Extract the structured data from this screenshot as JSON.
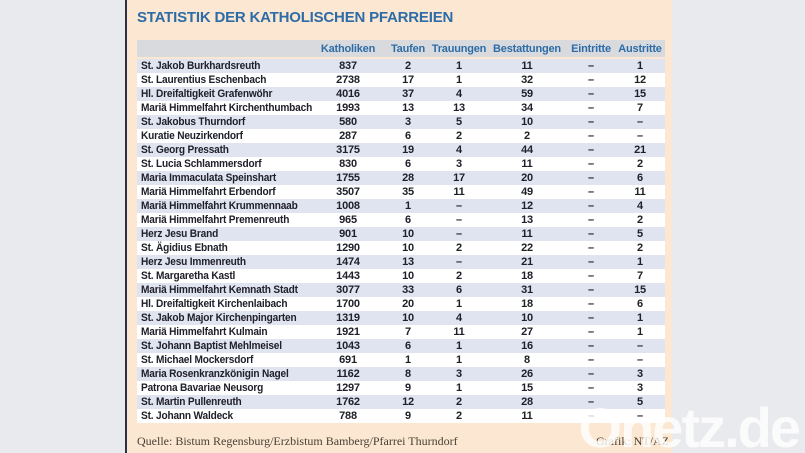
{
  "title": "STATISTIK DER KATHOLISCHEN PFARREIEN",
  "chart_data": {
    "type": "table",
    "title": "STATISTIK DER KATHOLISCHEN PFARREIEN",
    "columns": [
      "Katholiken",
      "Taufen",
      "Trauungen",
      "Bestattungen",
      "Eintritte",
      "Austritte"
    ],
    "rows": [
      {
        "name": "St. Jakob Burkhardsreuth",
        "values": [
          "837",
          "2",
          "1",
          "11",
          "–",
          "1"
        ]
      },
      {
        "name": "St. Laurentius Eschenbach",
        "values": [
          "2738",
          "17",
          "1",
          "32",
          "–",
          "12"
        ]
      },
      {
        "name": "Hl. Dreifaltigkeit Grafenwöhr",
        "values": [
          "4016",
          "37",
          "4",
          "59",
          "–",
          "15"
        ]
      },
      {
        "name": "Mariä Himmelfahrt Kirchenthumbach",
        "values": [
          "1993",
          "13",
          "13",
          "34",
          "–",
          "7"
        ]
      },
      {
        "name": "St. Jakobus Thurndorf",
        "values": [
          "580",
          "3",
          "5",
          "10",
          "–",
          "–"
        ]
      },
      {
        "name": "Kuratie Neuzirkendorf",
        "values": [
          "287",
          "6",
          "2",
          "2",
          "–",
          "–"
        ]
      },
      {
        "name": "St. Georg Pressath",
        "values": [
          "3175",
          "19",
          "4",
          "44",
          "–",
          "21"
        ]
      },
      {
        "name": "St. Lucia Schlammersdorf",
        "values": [
          "830",
          "6",
          "3",
          "11",
          "–",
          "2"
        ]
      },
      {
        "name": "Maria Immaculata Speinshart",
        "values": [
          "1755",
          "28",
          "17",
          "20",
          "–",
          "6"
        ]
      },
      {
        "name": "Mariä Himmelfahrt Erbendorf",
        "values": [
          "3507",
          "35",
          "11",
          "49",
          "–",
          "11"
        ]
      },
      {
        "name": "Mariä Himmelfahrt Krummennaab",
        "values": [
          "1008",
          "1",
          "–",
          "12",
          "–",
          "4"
        ]
      },
      {
        "name": "Mariä Himmelfahrt Premenreuth",
        "values": [
          "965",
          "6",
          "–",
          "13",
          "–",
          "2"
        ]
      },
      {
        "name": "Herz Jesu Brand",
        "values": [
          "901",
          "10",
          "–",
          "11",
          "–",
          "5"
        ]
      },
      {
        "name": "St. Ägidius Ebnath",
        "values": [
          "1290",
          "10",
          "2",
          "22",
          "–",
          "2"
        ]
      },
      {
        "name": "Herz Jesu Immenreuth",
        "values": [
          "1474",
          "13",
          "–",
          "21",
          "–",
          "1"
        ]
      },
      {
        "name": "St. Margaretha Kastl",
        "values": [
          "1443",
          "10",
          "2",
          "18",
          "–",
          "7"
        ]
      },
      {
        "name": "Mariä Himmelfahrt Kemnath Stadt",
        "values": [
          "3077",
          "33",
          "6",
          "31",
          "–",
          "15"
        ]
      },
      {
        "name": "Hl. Dreifaltigkeit Kirchenlaibach",
        "values": [
          "1700",
          "20",
          "1",
          "18",
          "–",
          "6"
        ]
      },
      {
        "name": "St. Jakob Major Kirchenpingarten",
        "values": [
          "1319",
          "10",
          "4",
          "10",
          "–",
          "1"
        ]
      },
      {
        "name": "Mariä Himmelfahrt Kulmain",
        "values": [
          "1921",
          "7",
          "11",
          "27",
          "–",
          "1"
        ]
      },
      {
        "name": "St. Johann Baptist Mehlmeisel",
        "values": [
          "1043",
          "6",
          "1",
          "16",
          "–",
          "–"
        ]
      },
      {
        "name": "St. Michael Mockersdorf",
        "values": [
          "691",
          "1",
          "1",
          "8",
          "–",
          "–"
        ]
      },
      {
        "name": "Maria Rosenkranzkönigin Nagel",
        "values": [
          "1162",
          "8",
          "3",
          "26",
          "–",
          "3"
        ]
      },
      {
        "name": "Patrona Bavariae Neusorg",
        "values": [
          "1297",
          "9",
          "1",
          "15",
          "–",
          "3"
        ]
      },
      {
        "name": "St. Martin Pullenreuth",
        "values": [
          "1762",
          "12",
          "2",
          "28",
          "–",
          "5"
        ]
      },
      {
        "name": "St. Johann Waldeck",
        "values": [
          "788",
          "9",
          "2",
          "11",
          "–",
          "–"
        ]
      }
    ]
  },
  "footer": {
    "source": "Quelle: Bistum Regensburg/Erzbistum Bamberg/Pfarrei Thurndorf",
    "credit": "Grafik: NT/AZ"
  },
  "watermark": "Onetz.de",
  "colors": {
    "panel_background": "#fbe7d2",
    "outer_background": "#e9eaed",
    "panel_border": "#2a3142",
    "title_blue": "#2d6ca6",
    "header_background": "#d9dade",
    "row_stripe_blue": "#e0e4f1",
    "row_white": "#ffffff",
    "row_text": "#20202a",
    "footer_text": "#4a4133",
    "watermark_white": "rgba(255,255,255,0.8)"
  }
}
